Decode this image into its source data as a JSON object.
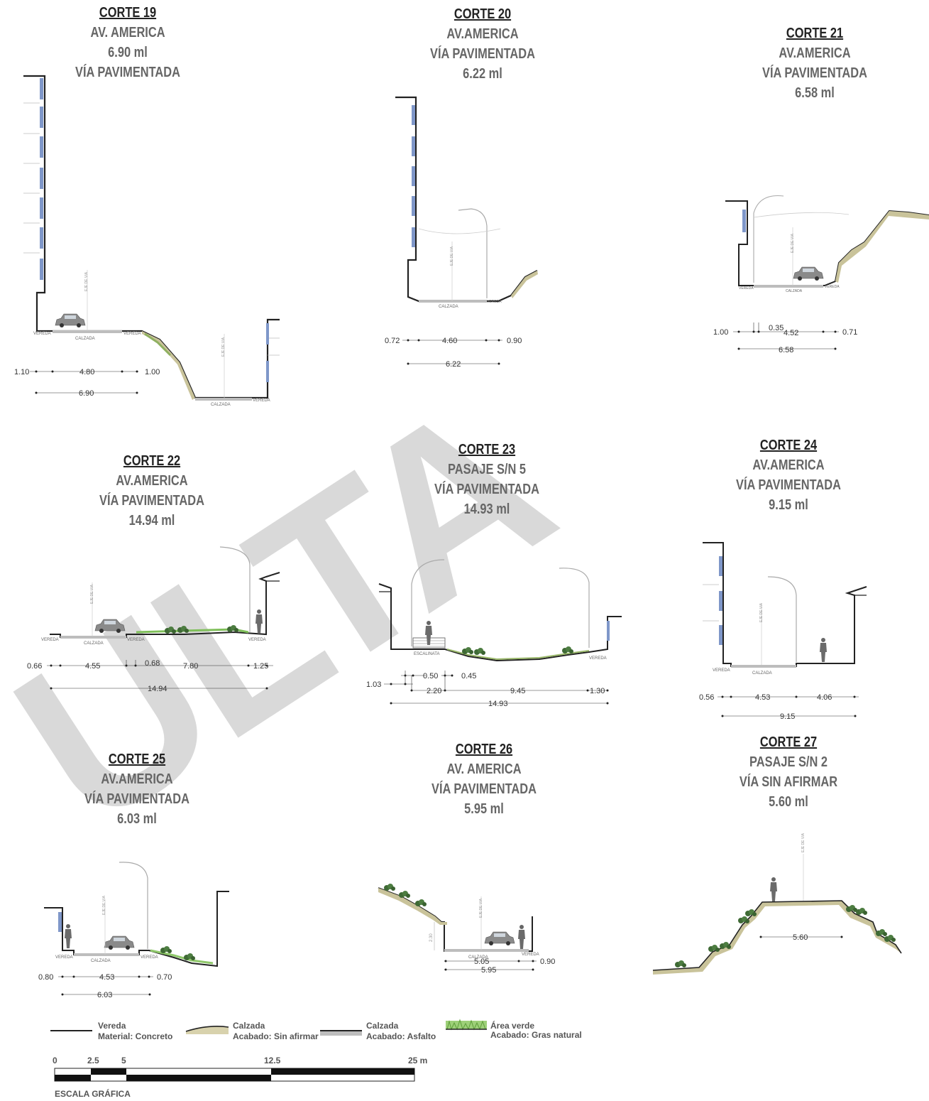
{
  "watermark": "ULTA",
  "sections": [
    {
      "id": "c19",
      "number": "CORTE 19",
      "lines": [
        "AV. AMERICA",
        "6.90 ml",
        "VÍA PAVIMENTADA"
      ],
      "labels": [
        "VEREDA",
        "CALZADA",
        "VEREDA",
        "EJE DE VIA",
        "EJE DE VIA",
        "CALZADA",
        "VEREDA"
      ],
      "dims": [
        "1.10",
        "4.80",
        "1.00",
        "6.90"
      ]
    },
    {
      "id": "c20",
      "number": "CORTE 20",
      "lines": [
        "AV.AMERICA",
        "VÍA PAVIMENTADA",
        "6.22 ml"
      ],
      "labels": [
        "EJE DE VIA",
        "CALZADA",
        "VEREDA"
      ],
      "dims": [
        "0.72",
        "4.60",
        "0.90",
        "6.22"
      ]
    },
    {
      "id": "c21",
      "number": "CORTE 21",
      "lines": [
        "AV.AMERICA",
        "VÍA PAVIMENTADA",
        "6.58 ml"
      ],
      "labels": [
        "EJE DE VIA",
        "VEREDA",
        "CALZADA",
        "VEREDA"
      ],
      "dims": [
        "1.00",
        "0.35",
        "4.52",
        "0.71",
        "6.58"
      ]
    },
    {
      "id": "c22",
      "number": "CORTE 22",
      "lines": [
        "AV.AMERICA",
        "VÍA PAVIMENTADA",
        "14.94 ml"
      ],
      "labels": [
        "EJE DE VIA",
        "VEREDA",
        "CALZADA",
        "VEREDA",
        "VEREDA"
      ],
      "dims": [
        "0.66",
        "4.55",
        "0.68",
        "7.80",
        "1.25",
        "14.94"
      ]
    },
    {
      "id": "c23",
      "number": "CORTE 23",
      "lines": [
        "PASAJE S/N 5",
        "VÍA PAVIMENTADA",
        "14.93 ml"
      ],
      "labels": [
        "ESCALINATA",
        "VEREDA"
      ],
      "dims": [
        "0.50",
        "0.45",
        "1.03",
        "2.20",
        "9.45",
        "1.30",
        "14.93"
      ]
    },
    {
      "id": "c24",
      "number": "CORTE 24",
      "lines": [
        "AV.AMERICA",
        "VÍA PAVIMENTADA",
        "9.15 ml"
      ],
      "labels": [
        "EJE DE VIA",
        "VEREDA",
        "CALZADA"
      ],
      "dims": [
        "0.56",
        "4.53",
        "4.06",
        "9.15"
      ]
    },
    {
      "id": "c25",
      "number": "CORTE 25",
      "lines": [
        "AV.AMERICA",
        "VÍA PAVIMENTADA",
        "6.03 ml"
      ],
      "labels": [
        "EJE DE VIA",
        "VEREDA",
        "CALZADA",
        "VEREDA"
      ],
      "dims": [
        "0.80",
        "4.53",
        "0.70",
        "6.03"
      ]
    },
    {
      "id": "c26",
      "number": "CORTE 26",
      "lines": [
        "AV. AMERICA",
        "VÍA PAVIMENTADA",
        "5.95 ml"
      ],
      "labels": [
        "EJE DE VIA",
        "CALZADA",
        "VEREDA",
        "2.30"
      ],
      "dims": [
        "5.05",
        "0.90",
        "5.95"
      ]
    },
    {
      "id": "c27",
      "number": "CORTE 27",
      "lines": [
        "PASAJE S/N 2",
        "VÍA SIN AFIRMAR",
        "5.60 ml"
      ],
      "labels": [
        "EJE DE VIA"
      ],
      "dims": [
        "5.60"
      ]
    }
  ],
  "legend": [
    {
      "title": "Vereda",
      "detail": "Material: Concreto"
    },
    {
      "title": "Calzada",
      "detail": "Acabado: Sin afirmar"
    },
    {
      "title": "Calzada",
      "detail": "Acabado: Asfalto"
    },
    {
      "title": "Área verde",
      "detail": "Acabado: Gras natural"
    }
  ],
  "scale": {
    "ticks": [
      "0",
      "2.5",
      "5",
      "12.5",
      "25 m"
    ],
    "caption": "ESCALA GRÁFICA"
  },
  "colors": {
    "line": "#222222",
    "asphalt": "#bdbdbd",
    "earth": "#c9c39a",
    "earth_dark": "#6f6a3a",
    "grass": "#6fa84a",
    "shrub": "#3f6a35",
    "window": "#7f97c9",
    "text": "#666666"
  }
}
